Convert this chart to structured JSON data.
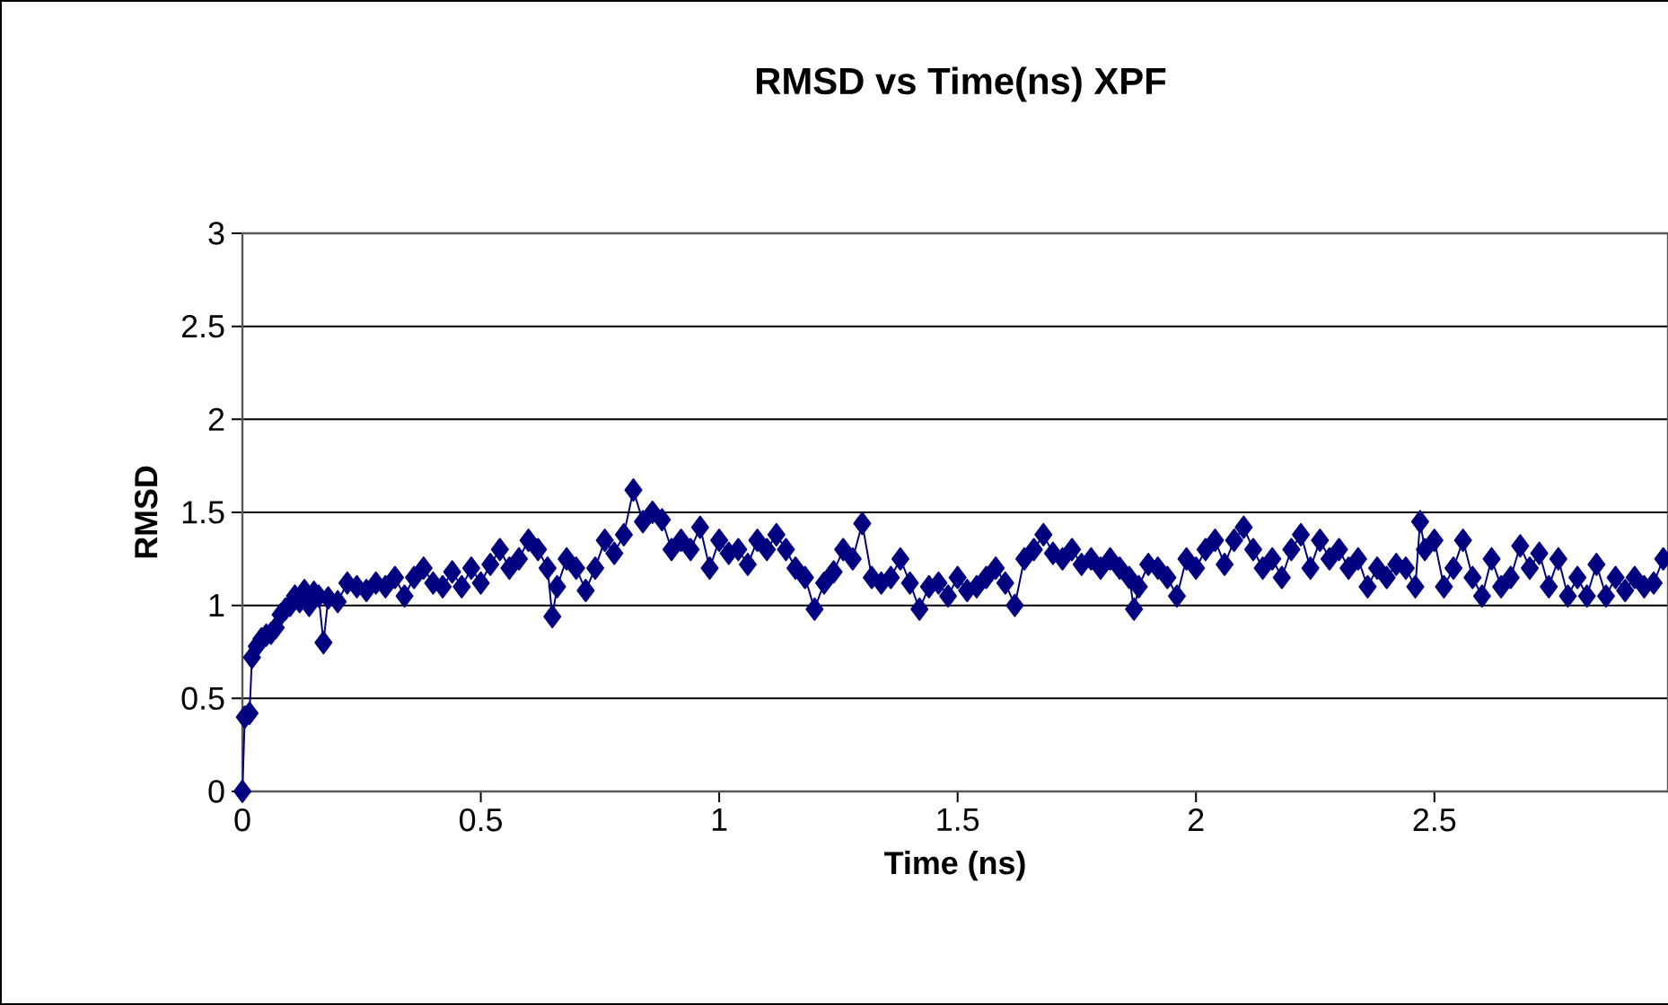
{
  "chart_data": {
    "type": "line",
    "title": "RMSD vs Time(ns) XPF",
    "xlabel": "Time  (ns)",
    "ylabel": "RMSD",
    "xlim": [
      0,
      2.99
    ],
    "ylim": [
      0,
      3
    ],
    "xticks": [
      0,
      0.5,
      1,
      1.5,
      2,
      2.5
    ],
    "yticks": [
      0,
      0.5,
      1,
      1.5,
      2,
      2.5,
      3
    ],
    "grid": "y",
    "marker": "diamond",
    "line_style": "solid",
    "series": [
      {
        "color": "#000080",
        "x": [
          0,
          0.005,
          0.015,
          0.02,
          0.03,
          0.04,
          0.05,
          0.06,
          0.07,
          0.08,
          0.09,
          0.1,
          0.11,
          0.12,
          0.13,
          0.14,
          0.15,
          0.16,
          0.17,
          0.18,
          0.2,
          0.22,
          0.24,
          0.26,
          0.28,
          0.3,
          0.32,
          0.34,
          0.36,
          0.38,
          0.4,
          0.42,
          0.44,
          0.46,
          0.48,
          0.5,
          0.52,
          0.54,
          0.56,
          0.58,
          0.6,
          0.62,
          0.64,
          0.65,
          0.66,
          0.68,
          0.7,
          0.72,
          0.74,
          0.76,
          0.78,
          0.8,
          0.82,
          0.84,
          0.86,
          0.88,
          0.9,
          0.92,
          0.94,
          0.96,
          0.98,
          1.0,
          1.02,
          1.04,
          1.06,
          1.08,
          1.1,
          1.12,
          1.14,
          1.16,
          1.18,
          1.2,
          1.22,
          1.24,
          1.26,
          1.28,
          1.3,
          1.32,
          1.34,
          1.36,
          1.38,
          1.4,
          1.42,
          1.44,
          1.46,
          1.48,
          1.5,
          1.52,
          1.54,
          1.56,
          1.58,
          1.6,
          1.62,
          1.64,
          1.66,
          1.68,
          1.7,
          1.72,
          1.74,
          1.76,
          1.78,
          1.8,
          1.82,
          1.84,
          1.86,
          1.87,
          1.88,
          1.9,
          1.92,
          1.94,
          1.96,
          1.98,
          2.0,
          2.02,
          2.04,
          2.06,
          2.08,
          2.1,
          2.12,
          2.14,
          2.16,
          2.18,
          2.2,
          2.22,
          2.24,
          2.26,
          2.28,
          2.3,
          2.32,
          2.34,
          2.36,
          2.38,
          2.4,
          2.42,
          2.44,
          2.46,
          2.47,
          2.48,
          2.5,
          2.52,
          2.54,
          2.56,
          2.58,
          2.6,
          2.62,
          2.64,
          2.66,
          2.68,
          2.7,
          2.72,
          2.74,
          2.76,
          2.78,
          2.8,
          2.82,
          2.84,
          2.86,
          2.88,
          2.9,
          2.92,
          2.94,
          2.96,
          2.98
        ],
        "values": [
          0,
          0.4,
          0.42,
          0.72,
          0.78,
          0.82,
          0.84,
          0.85,
          0.88,
          0.95,
          0.98,
          1.0,
          1.05,
          1.02,
          1.08,
          1.0,
          1.07,
          1.05,
          0.8,
          1.04,
          1.02,
          1.12,
          1.1,
          1.08,
          1.12,
          1.1,
          1.15,
          1.05,
          1.15,
          1.2,
          1.12,
          1.1,
          1.18,
          1.1,
          1.2,
          1.12,
          1.22,
          1.3,
          1.2,
          1.25,
          1.35,
          1.3,
          1.2,
          0.94,
          1.1,
          1.25,
          1.2,
          1.08,
          1.2,
          1.35,
          1.28,
          1.38,
          1.62,
          1.45,
          1.5,
          1.46,
          1.3,
          1.35,
          1.3,
          1.42,
          1.2,
          1.35,
          1.28,
          1.3,
          1.22,
          1.35,
          1.3,
          1.38,
          1.3,
          1.2,
          1.15,
          0.98,
          1.12,
          1.18,
          1.3,
          1.25,
          1.44,
          1.15,
          1.12,
          1.15,
          1.25,
          1.12,
          0.98,
          1.1,
          1.12,
          1.05,
          1.15,
          1.08,
          1.1,
          1.15,
          1.2,
          1.12,
          1.0,
          1.25,
          1.3,
          1.38,
          1.28,
          1.25,
          1.3,
          1.22,
          1.25,
          1.2,
          1.25,
          1.2,
          1.15,
          0.98,
          1.1,
          1.22,
          1.2,
          1.15,
          1.05,
          1.25,
          1.2,
          1.3,
          1.35,
          1.22,
          1.35,
          1.42,
          1.3,
          1.2,
          1.25,
          1.15,
          1.3,
          1.38,
          1.2,
          1.35,
          1.25,
          1.3,
          1.2,
          1.25,
          1.1,
          1.2,
          1.15,
          1.22,
          1.2,
          1.1,
          1.45,
          1.3,
          1.35,
          1.1,
          1.2,
          1.35,
          1.15,
          1.05,
          1.25,
          1.1,
          1.15,
          1.32,
          1.2,
          1.28,
          1.1,
          1.25,
          1.05,
          1.15,
          1.05,
          1.22,
          1.05,
          1.15,
          1.08,
          1.15,
          1.1,
          1.12,
          1.25
        ]
      }
    ]
  }
}
